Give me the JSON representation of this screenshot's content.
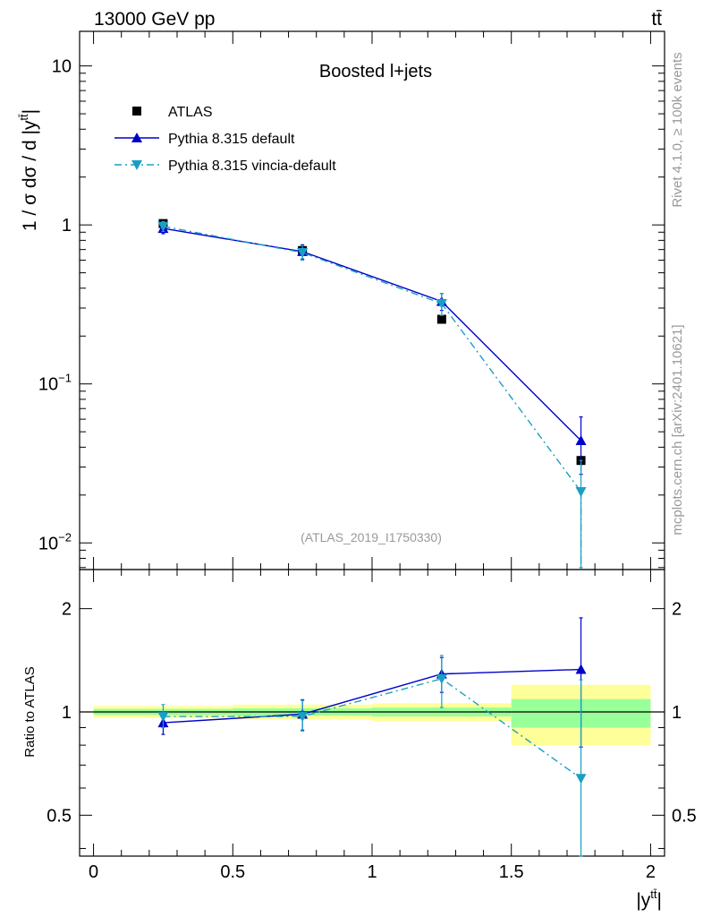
{
  "header": {
    "left": "13000 GeV pp",
    "right": "tt̄"
  },
  "side_labels": {
    "rivet": "Rivet 4.1.0, ≥ 100k events",
    "mcplots": "mcplots.cern.ch [arXiv:2401.10621]"
  },
  "colors": {
    "atlas": "#000000",
    "pythia_default": "#0000cc",
    "pythia_vincia": "#1a9fc4",
    "band_inner": "#99ff99",
    "band_outer": "#ffff99"
  },
  "chart_data": [
    {
      "type": "line",
      "title": "Boosted l+jets",
      "watermark": "(ATLAS_2019_I1750330)",
      "xlabel": "",
      "ylabel": "1 / σ dσ / d |y",
      "ylabel_sup": "tt̄",
      "ylabel_close": "|",
      "yscale": "log",
      "xlim": [
        -0.05,
        2.05
      ],
      "ylim": [
        0.0068,
        16.5
      ],
      "ytick_labels": [
        {
          "value": 10,
          "base": "10",
          "exp": ""
        },
        {
          "value": 1,
          "base": "1",
          "exp": ""
        },
        {
          "value": 0.1,
          "base": "10",
          "exp": "−1"
        },
        {
          "value": 0.01,
          "base": "10",
          "exp": "−2"
        }
      ],
      "legend_position": "top-left",
      "series": [
        {
          "name": "ATLAS",
          "style": "data",
          "marker": "square",
          "x": [
            0.25,
            0.75,
            1.25,
            1.75
          ],
          "y": [
            1.02,
            0.69,
            0.255,
            0.033
          ],
          "yerr_lo": [
            0.02,
            0.02,
            0.007,
            0.0025
          ],
          "yerr_hi": [
            0.02,
            0.02,
            0.007,
            0.0025
          ],
          "xerr": [
            0.25,
            0.25,
            0.25,
            0.25
          ]
        },
        {
          "name": "Pythia 8.315 default",
          "style": "solid",
          "marker": "triangle-up",
          "x": [
            0.25,
            0.75,
            1.25,
            1.75
          ],
          "y": [
            0.95,
            0.68,
            0.33,
            0.044
          ],
          "yerr_lo": [
            0.07,
            0.07,
            0.04,
            0.017
          ],
          "yerr_hi": [
            0.07,
            0.07,
            0.04,
            0.018
          ]
        },
        {
          "name": "Pythia 8.315 vincia-default",
          "style": "dashdot",
          "marker": "triangle-down",
          "x": [
            0.25,
            0.75,
            1.25,
            1.75
          ],
          "y": [
            0.98,
            0.67,
            0.32,
            0.021
          ],
          "yerr_lo": [
            0.07,
            0.07,
            0.05,
            0.014
          ],
          "yerr_hi": [
            0.07,
            0.07,
            0.05,
            0.012
          ]
        }
      ]
    },
    {
      "type": "line",
      "title": "",
      "xlabel": "|y",
      "xlabel_sup": "tt̄",
      "xlabel_close": "|",
      "ylabel": "Ratio to ATLAS",
      "yscale": "log",
      "xlim": [
        -0.05,
        2.05
      ],
      "ylim": [
        0.38,
        2.6
      ],
      "xticks": [
        0,
        0.5,
        1,
        1.5,
        2
      ],
      "xtick_labels": [
        "0",
        "0.5",
        "1",
        "1.5",
        "2"
      ],
      "yticks": [
        0.5,
        1,
        2
      ],
      "ytick_labels": [
        "0.5",
        "1",
        "2"
      ],
      "reference_line": 1,
      "bands": [
        {
          "x0": 0.0,
          "x1": 0.5,
          "inner": [
            0.98,
            1.02
          ],
          "outer": [
            0.96,
            1.04
          ]
        },
        {
          "x0": 0.5,
          "x1": 1.0,
          "inner": [
            0.975,
            1.025
          ],
          "outer": [
            0.95,
            1.05
          ]
        },
        {
          "x0": 1.0,
          "x1": 1.5,
          "inner": [
            0.97,
            1.03
          ],
          "outer": [
            0.94,
            1.06
          ]
        },
        {
          "x0": 1.5,
          "x1": 2.0,
          "inner": [
            0.9,
            1.09
          ],
          "outer": [
            0.8,
            1.2
          ]
        }
      ],
      "series": [
        {
          "name": "Pythia 8.315 default",
          "style": "solid",
          "marker": "triangle-up",
          "x": [
            0.25,
            0.75,
            1.25,
            1.75
          ],
          "y": [
            0.93,
            0.985,
            1.29,
            1.33
          ],
          "yerr_lo": [
            0.07,
            0.1,
            0.15,
            0.54
          ],
          "yerr_hi": [
            0.07,
            0.1,
            0.15,
            0.55
          ]
        },
        {
          "name": "Pythia 8.315 vincia-default",
          "style": "dashdot",
          "marker": "triangle-down",
          "x": [
            0.25,
            0.75,
            1.25,
            1.75
          ],
          "y": [
            0.97,
            0.97,
            1.25,
            0.64
          ],
          "yerr_lo": [
            0.07,
            0.09,
            0.22,
            0.3
          ],
          "yerr_hi": [
            0.08,
            0.11,
            0.21,
            0.6
          ]
        }
      ]
    }
  ]
}
